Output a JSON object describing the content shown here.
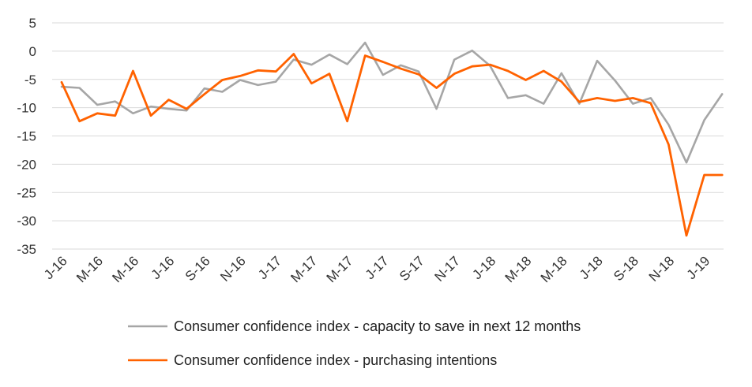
{
  "chart_data": {
    "type": "line",
    "x": [
      "Jan-16",
      "Feb-16",
      "Mar-16",
      "Apr-16",
      "May-16",
      "Jun-16",
      "Jul-16",
      "Aug-16",
      "Sep-16",
      "Oct-16",
      "Nov-16",
      "Dec-16",
      "Jan-17",
      "Feb-17",
      "Mar-17",
      "Apr-17",
      "May-17",
      "Jun-17",
      "Jul-17",
      "Aug-17",
      "Sep-17",
      "Oct-17",
      "Nov-17",
      "Dec-17",
      "Jan-18",
      "Feb-18",
      "Mar-18",
      "Apr-18",
      "May-18",
      "Jun-18",
      "Jul-18",
      "Aug-18",
      "Sep-18",
      "Oct-18",
      "Nov-18",
      "Dec-18",
      "Jan-19",
      "Feb-19"
    ],
    "tick_labels": [
      "J-16",
      "M-16",
      "M-16",
      "J-16",
      "S-16",
      "N-16",
      "J-17",
      "M-17",
      "M-17",
      "J-17",
      "S-17",
      "N-17",
      "J-18",
      "M-18",
      "M-18",
      "J-18",
      "S-18",
      "N-18",
      "J-19"
    ],
    "series": [
      {
        "name": "Consumer confidence index - capacity to save in next 12 months",
        "color": "#a6a6a6",
        "values": [
          -6.3,
          -6.5,
          -9.5,
          -8.9,
          -11.0,
          -9.8,
          -10.2,
          -10.5,
          -6.6,
          -7.2,
          -5.1,
          -6.0,
          -5.4,
          -1.5,
          -2.4,
          -0.6,
          -2.3,
          1.5,
          -4.2,
          -2.5,
          -3.6,
          -10.2,
          -1.5,
          0.1,
          -2.6,
          -8.3,
          -7.8,
          -9.3,
          -3.9,
          -9.3,
          -1.7,
          -5.2,
          -9.3,
          -8.3,
          -13.0,
          -19.7,
          -12.2,
          -7.6
        ]
      },
      {
        "name": "Consumer confidence index - purchasing intentions",
        "color": "#ff6200",
        "values": [
          -5.5,
          -12.4,
          -11.0,
          -11.4,
          -3.5,
          -11.4,
          -8.6,
          -10.2,
          -7.6,
          -5.1,
          -4.4,
          -3.4,
          -3.6,
          -0.5,
          -5.7,
          -4.0,
          -12.4,
          -0.8,
          -1.9,
          -3.1,
          -4.1,
          -6.5,
          -4.0,
          -2.7,
          -2.4,
          -3.5,
          -5.1,
          -3.5,
          -5.4,
          -9.0,
          -8.3,
          -8.8,
          -8.3,
          -9.2,
          -16.5,
          -32.6,
          -21.9,
          -21.9
        ]
      }
    ],
    "ylim": [
      -35,
      5
    ],
    "yticks": [
      5,
      0,
      -5,
      -10,
      -15,
      -20,
      -25,
      -30,
      -35
    ],
    "grid": true,
    "legend": "bottom",
    "xlabel": "",
    "ylabel": "",
    "title": ""
  }
}
